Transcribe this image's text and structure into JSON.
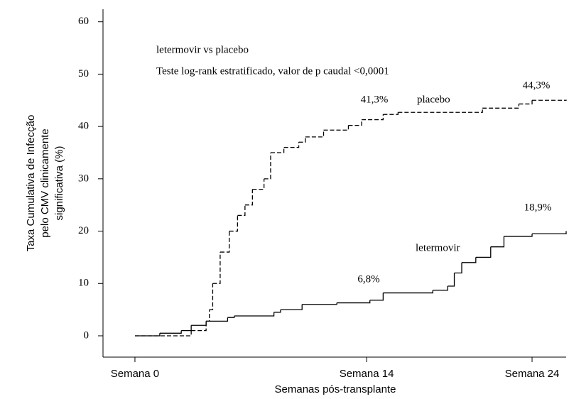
{
  "chart_data": {
    "type": "step",
    "x_label": "Semanas pós-transplante",
    "y_label": [
      "Taxa Cumulativa de Infecção",
      "pelo CMV clinicamente",
      "significativa (%)"
    ],
    "annotations": [
      "letermovir vs placebo",
      "Teste log-rank estratificado, valor de p caudal <0,0001",
      "41,3%",
      "placebo",
      "44,3%",
      "18,9%",
      "letermovir",
      "6,8%"
    ],
    "xlim": [
      -1.93,
      26.06
    ],
    "ylim": [
      -4.07,
      62.4
    ],
    "xticks": [
      {
        "value": 0,
        "label": "Semana 0"
      },
      {
        "value": 14,
        "label": "Semana 14"
      },
      {
        "value": 24,
        "label": "Semana 24"
      }
    ],
    "yticks": [
      0,
      10,
      20,
      30,
      40,
      50,
      60
    ],
    "series": [
      {
        "name": "placebo",
        "color": "#000000",
        "dash": true,
        "x": [
          0,
          3.4,
          4.3,
          4.5,
          4.7,
          5.15,
          5.7,
          6.2,
          6.65,
          7.1,
          7.8,
          8.2,
          9.0,
          9.9,
          10.3,
          11.4,
          12.9,
          13.7,
          15.0,
          15.9,
          19.75,
          21.0,
          23.2,
          24.0,
          26.06
        ],
        "y": [
          0,
          1,
          2.8,
          5,
          10,
          16,
          20,
          23,
          25,
          28,
          30,
          35,
          36,
          37,
          38,
          39.3,
          40.2,
          41.3,
          42.3,
          42.7,
          42.7,
          43.5,
          44.3,
          45,
          45.1
        ]
      },
      {
        "name": "letermovir",
        "color": "#000000",
        "dash": false,
        "x": [
          0,
          1.5,
          2.8,
          3.4,
          4.3,
          5.6,
          6.0,
          8.4,
          8.8,
          10.1,
          12.2,
          14.2,
          15.0,
          18.0,
          18.9,
          19.3,
          19.75,
          20.6,
          21.5,
          22.3,
          24.0,
          26.06
        ],
        "y": [
          0,
          0.5,
          1,
          2,
          2.8,
          3.5,
          3.8,
          4.5,
          5,
          6,
          6.3,
          6.8,
          8.2,
          8.7,
          9.5,
          12,
          14,
          15,
          17,
          19,
          19.5,
          20
        ]
      }
    ]
  }
}
